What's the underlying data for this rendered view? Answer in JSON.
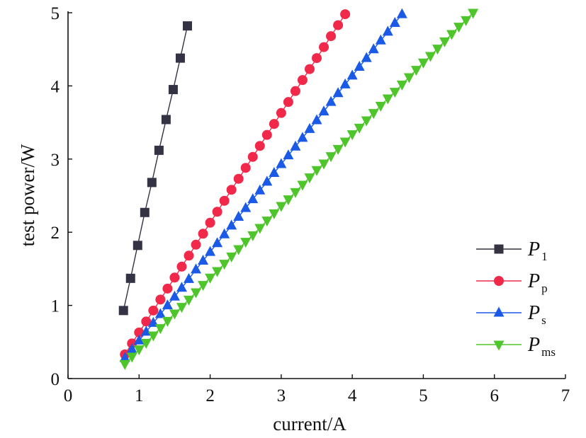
{
  "chart_data": {
    "type": "line",
    "title": "",
    "xlabel": "current/A",
    "ylabel": "test power/W",
    "xlim": [
      0,
      7
    ],
    "ylim": [
      0,
      5
    ],
    "xticks": [
      "0",
      "1",
      "2",
      "3",
      "4",
      "5",
      "6",
      "7"
    ],
    "yticks": [
      "0",
      "1",
      "2",
      "3",
      "4",
      "5"
    ],
    "grid": false,
    "legend_position": "bottom-right",
    "series": [
      {
        "name": "P",
        "sub": "1",
        "color": "#333344",
        "marker": "square",
        "x_start": 0.78,
        "x_step": 0.1,
        "values": [
          0.93,
          1.37,
          1.82,
          2.27,
          2.68,
          3.12,
          3.54,
          3.95,
          4.38,
          4.82
        ]
      },
      {
        "name": "P",
        "sub": "p",
        "color": "#f0284a",
        "marker": "circle",
        "x_start": 0.8,
        "x_step": 0.1,
        "values": [
          0.33,
          0.48,
          0.63,
          0.78,
          0.93,
          1.08,
          1.23,
          1.38,
          1.53,
          1.68,
          1.83,
          1.98,
          2.13,
          2.28,
          2.43,
          2.58,
          2.73,
          2.88,
          3.03,
          3.18,
          3.33,
          3.48,
          3.63,
          3.78,
          3.93,
          4.08,
          4.23,
          4.38,
          4.53,
          4.68,
          4.83,
          4.98
        ]
      },
      {
        "name": "P",
        "sub": "s",
        "color": "#1a5ae6",
        "marker": "triangle-up",
        "x_start": 0.8,
        "x_step": 0.1,
        "values": [
          0.28,
          0.4,
          0.52,
          0.64,
          0.76,
          0.88,
          1.0,
          1.12,
          1.24,
          1.36,
          1.49,
          1.61,
          1.73,
          1.85,
          1.97,
          2.09,
          2.21,
          2.33,
          2.45,
          2.57,
          2.69,
          2.81,
          2.93,
          3.05,
          3.17,
          3.29,
          3.41,
          3.53,
          3.65,
          3.78,
          3.9,
          4.02,
          4.14,
          4.26,
          4.38,
          4.5,
          4.62,
          4.74,
          4.86,
          4.98
        ]
      },
      {
        "name": "P",
        "sub": "ms",
        "color": "#4ec52a",
        "marker": "triangle-down",
        "x_start": 0.8,
        "x_step": 0.1,
        "values": [
          0.2,
          0.3,
          0.4,
          0.49,
          0.59,
          0.69,
          0.79,
          0.89,
          0.98,
          1.08,
          1.18,
          1.28,
          1.38,
          1.47,
          1.57,
          1.67,
          1.77,
          1.87,
          1.96,
          2.06,
          2.16,
          2.26,
          2.36,
          2.45,
          2.55,
          2.65,
          2.75,
          2.85,
          2.94,
          3.04,
          3.14,
          3.24,
          3.34,
          3.43,
          3.53,
          3.63,
          3.73,
          3.83,
          3.92,
          4.02,
          4.12,
          4.22,
          4.32,
          4.41,
          4.51,
          4.61,
          4.71,
          4.81,
          4.9,
          5.0
        ]
      }
    ]
  }
}
